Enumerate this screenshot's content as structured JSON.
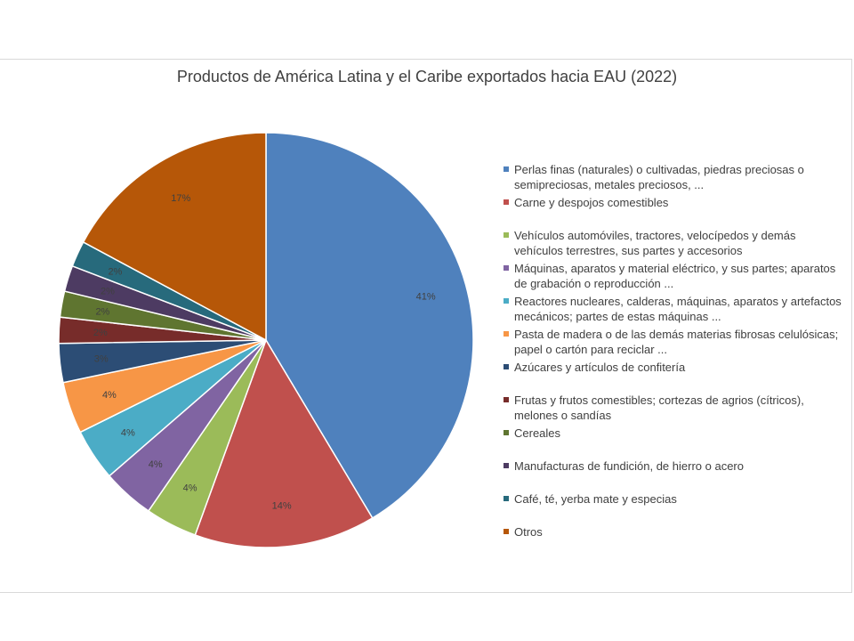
{
  "chart_data": {
    "type": "pie",
    "title": "Productos de América Latina y el Caribe exportados hacia EAU (2022)",
    "legend_position": "right",
    "start_angle": "12 o'clock",
    "direction": "clockwise",
    "slices": [
      {
        "label": "Perlas finas (naturales) o cultivadas, piedras preciosas o semipreciosas, metales preciosos, ...",
        "value": 41,
        "display": "41%",
        "color": "#4f81bd"
      },
      {
        "label": "Carne y despojos comestibles",
        "value": 14,
        "display": "14%",
        "color": "#c0504d"
      },
      {
        "label": "Vehículos automóviles, tractores, velocípedos y demás vehículos terrestres, sus partes y accesorios",
        "value": 4,
        "display": "4%",
        "color": "#9bbb59"
      },
      {
        "label": "Máquinas, aparatos y material eléctrico, y sus partes; aparatos de grabación o reproducción ...",
        "value": 4,
        "display": "4%",
        "color": "#8064a2"
      },
      {
        "label": "Reactores nucleares, calderas, máquinas, aparatos y artefactos mecánicos; partes de estas máquinas ...",
        "value": 4,
        "display": "4%",
        "color": "#4bacc6"
      },
      {
        "label": "Pasta de madera o de las demás materias fibrosas celulósicas; papel o cartón para reciclar ...",
        "value": 4,
        "display": "4%",
        "color": "#f79646"
      },
      {
        "label": "Azúcares y artículos de confitería",
        "value": 3,
        "display": "3%",
        "color": "#2c4d75"
      },
      {
        "label": "Frutas y frutos comestibles; cortezas de agrios (cítricos), melones o sandías",
        "value": 2,
        "display": "2%",
        "color": "#772c2a"
      },
      {
        "label": "Cereales",
        "value": 2,
        "display": "2%",
        "color": "#5f7530"
      },
      {
        "label": "Manufacturas de fundición, de hierro o acero",
        "value": 2,
        "display": "2%",
        "color": "#4d3b62"
      },
      {
        "label": "Café, té, yerba mate y especias",
        "value": 2,
        "display": "2%",
        "color": "#276a7c"
      },
      {
        "label": "Otros",
        "value": 17,
        "display": "17%",
        "color": "#b65708"
      }
    ]
  }
}
